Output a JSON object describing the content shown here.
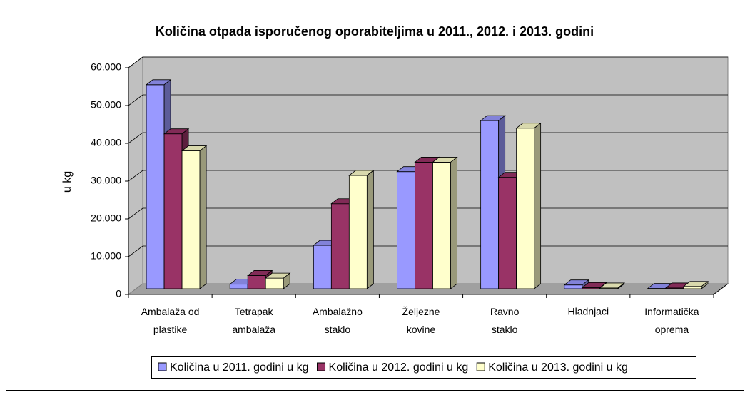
{
  "chart_data": {
    "type": "bar3d",
    "title": "Količina otpada isporučenog oporabiteljima u 2011., 2012. i 2013. godini",
    "y_label": "u kg",
    "categories": [
      "Ambalaža od plastike",
      "Tetrapak ambalaža",
      "Ambalažno staklo",
      "Željezne kovine",
      "Ravno staklo",
      "Hladnjaci",
      "Informatička oprema"
    ],
    "series": [
      {
        "name": "Količina u 2011. godini u kg",
        "color": "#9999ff",
        "values": [
          54000,
          1200,
          11500,
          31000,
          44500,
          1000,
          100
        ]
      },
      {
        "name": "Količina u 2012. godini u kg",
        "color": "#993366",
        "values": [
          41000,
          3500,
          22500,
          33500,
          29500,
          300,
          200
        ]
      },
      {
        "name": "Količina u 2013. godini u kg",
        "color": "#ffffcc",
        "values": [
          36500,
          2800,
          30000,
          33500,
          42500,
          200,
          600
        ]
      }
    ],
    "ylim": [
      0,
      60000
    ],
    "yticks": [
      0,
      {
        "value": 10000,
        "label": "10.000"
      },
      {
        "value": 20000,
        "label": "20.000"
      },
      {
        "value": 30000,
        "label": "30.000"
      },
      {
        "value": 40000,
        "label": "40.000"
      },
      {
        "value": 50000,
        "label": "50.000"
      },
      {
        "value": 60000,
        "label": "60.000"
      }
    ],
    "grid": true,
    "legend": "bottom"
  }
}
